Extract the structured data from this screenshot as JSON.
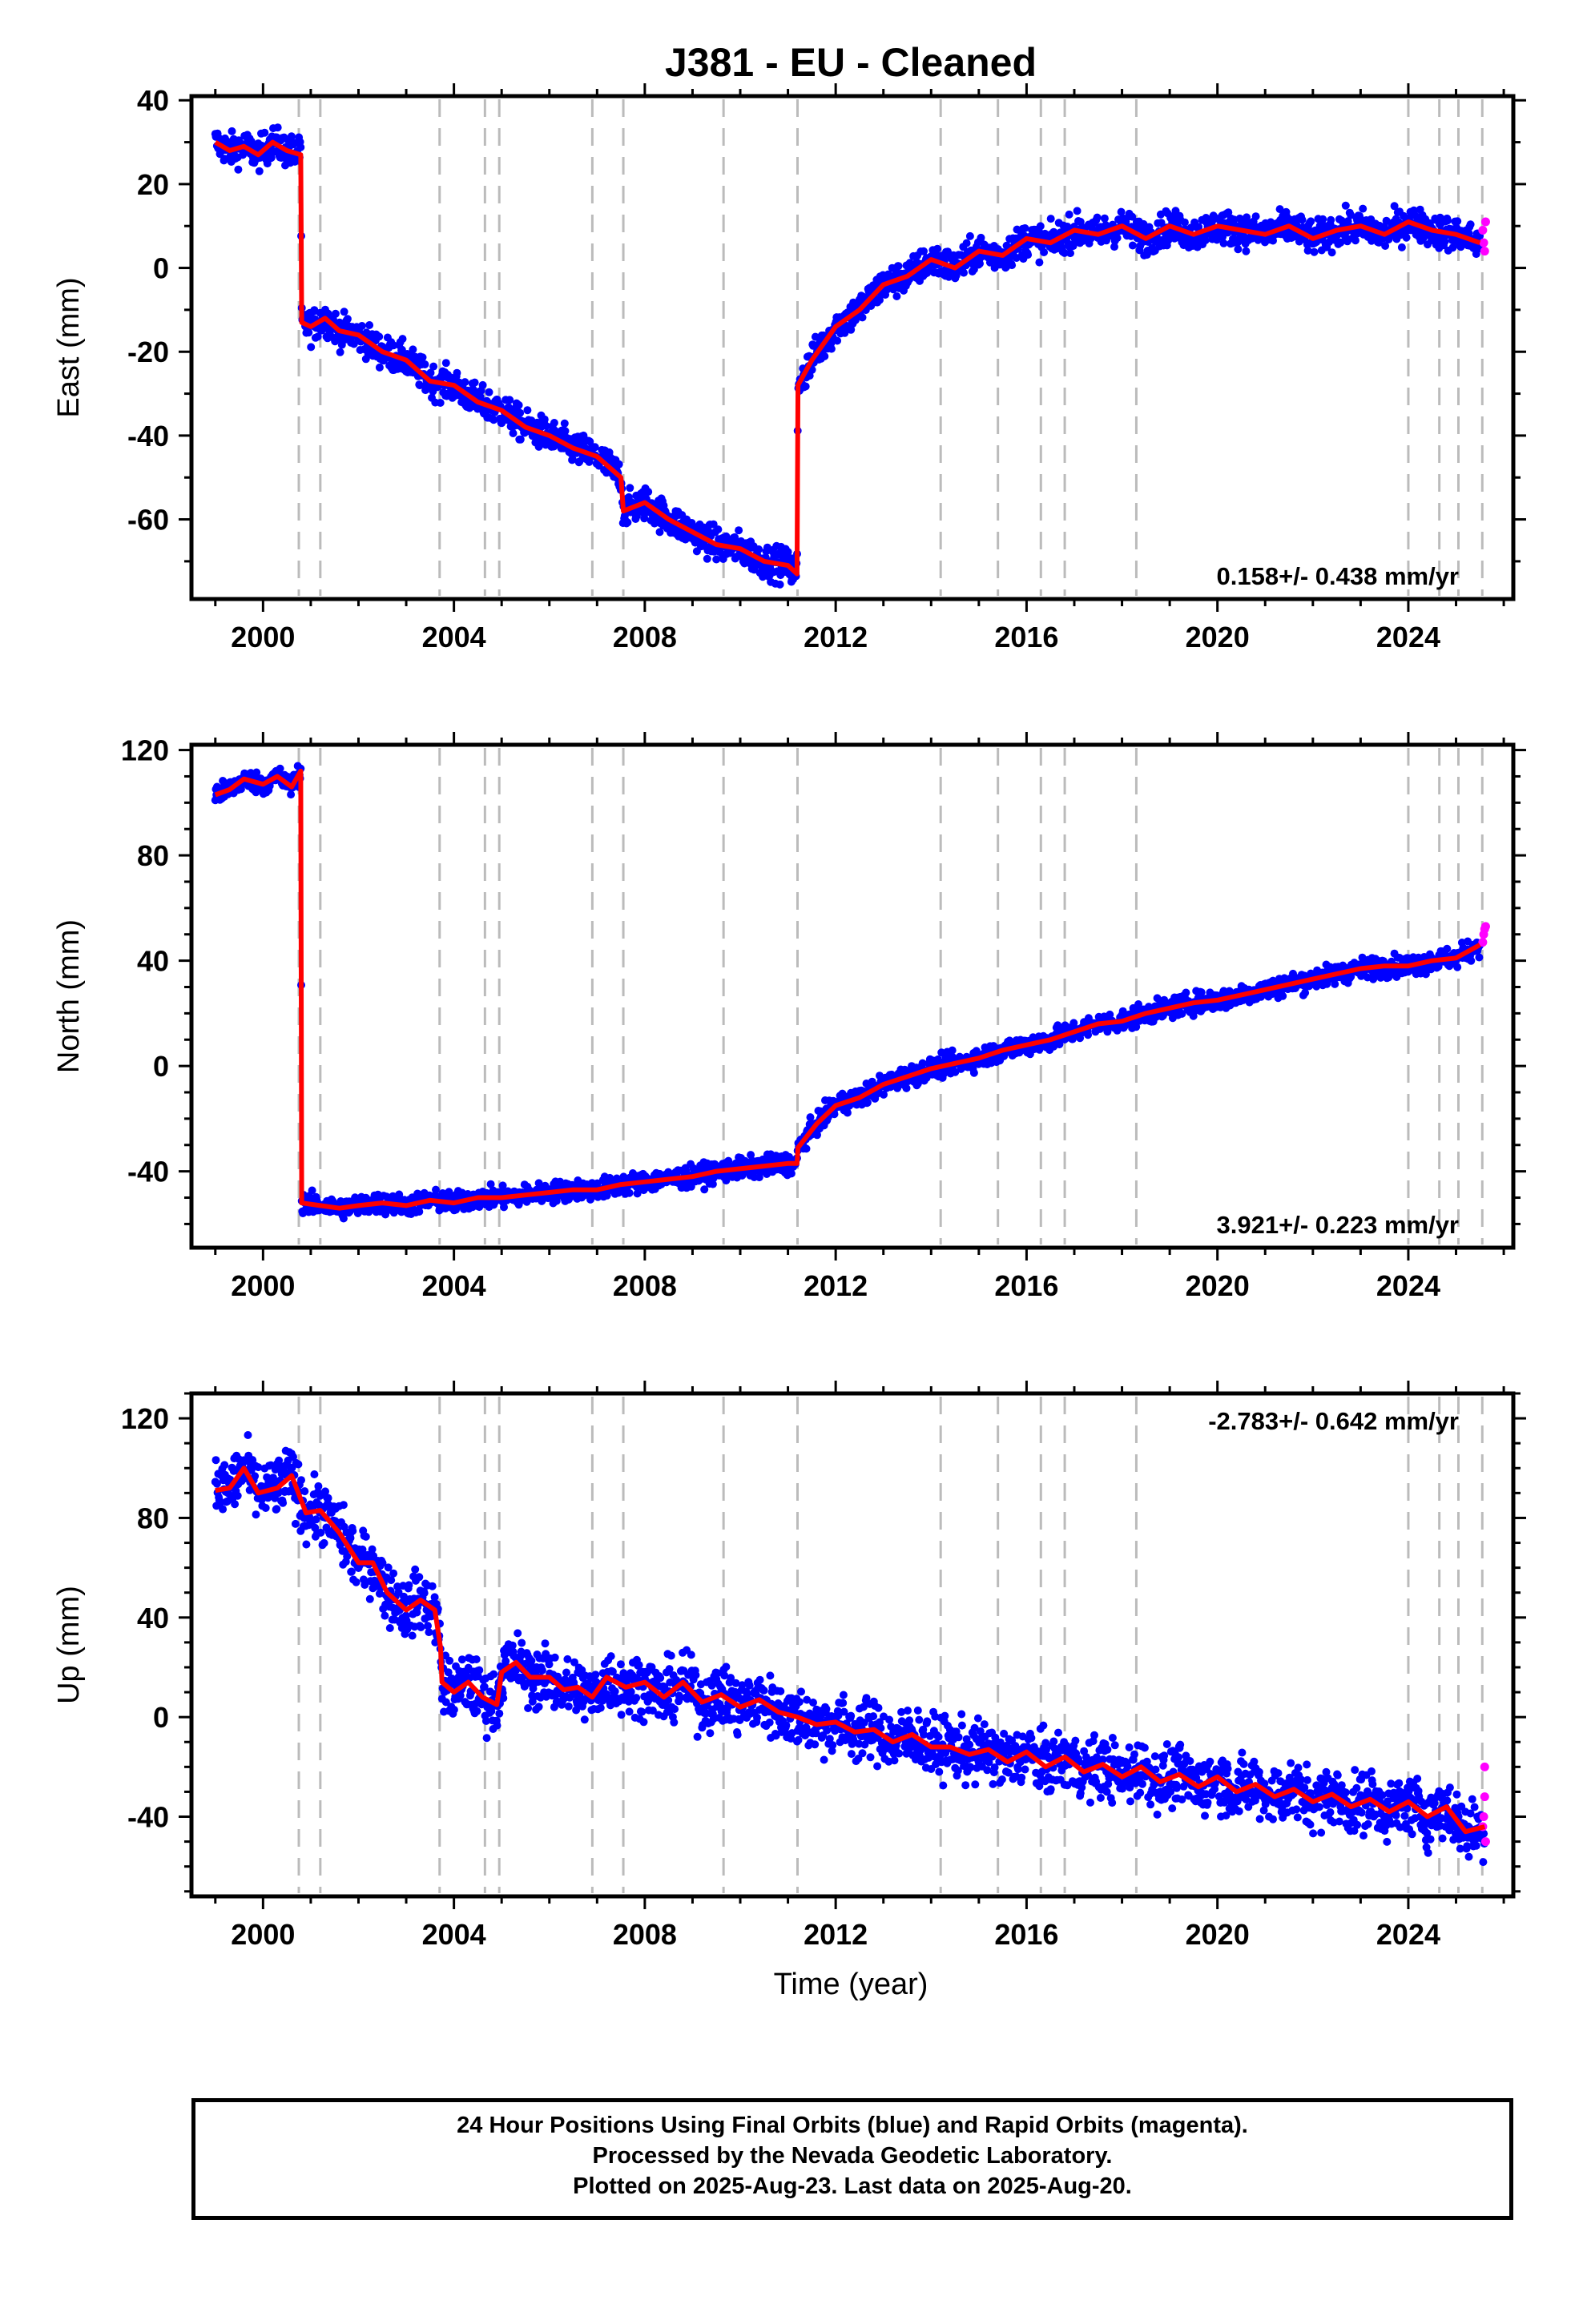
{
  "title": "J381  - EU - Cleaned",
  "xlabel": "Time (year)",
  "x_ticks": [
    "2000",
    "2004",
    "2008",
    "2012",
    "2016",
    "2020",
    "2024"
  ],
  "colors": {
    "final_orbits": "#0000ff",
    "rapid_orbits": "#ff00ff",
    "model": "#ff0000",
    "equipment_lines": "#bbbbbb"
  },
  "caption": {
    "line1": "24 Hour Positions Using Final Orbits (blue) and Rapid Orbits (magenta).",
    "line2": "Processed by the Nevada Geodetic Laboratory.",
    "line3": "Plotted on 2025-Aug-23. Last data on 2025-Aug-20."
  },
  "chart_data": [
    {
      "type": "scatter",
      "ylabel": "East (mm)",
      "rate_label": "0.158+/- 0.438 mm/yr",
      "xlim": [
        1998.5,
        2026.2
      ],
      "ylim": [
        -79,
        41
      ],
      "y_ticks": [
        40,
        20,
        0,
        -20,
        -40,
        -60
      ],
      "grid": false,
      "equipment_changes": [
        2000.75,
        2001.2,
        2003.7,
        2004.65,
        2004.95,
        2006.9,
        2007.55,
        2009.65,
        2011.2,
        2014.2,
        2015.4,
        2016.3,
        2016.8,
        2018.3,
        2024.0,
        2024.65,
        2025.05,
        2025.55
      ],
      "series": [
        {
          "role": "model",
          "x": [
            1999.0,
            1999.3,
            1999.6,
            1999.9,
            2000.2,
            2000.5,
            2000.79,
            2000.81,
            2001.0,
            2001.3,
            2001.6,
            2002.0,
            2002.5,
            2003.0,
            2003.5,
            2004.0,
            2004.5,
            2005.0,
            2005.5,
            2006.0,
            2006.5,
            2007.0,
            2007.5,
            2007.55,
            2008.0,
            2008.5,
            2009.0,
            2009.5,
            2010.0,
            2010.5,
            2011.0,
            2011.19,
            2011.21,
            2011.5,
            2012.0,
            2012.5,
            2013.0,
            2013.5,
            2014.0,
            2014.5,
            2015.0,
            2015.5,
            2016.0,
            2016.5,
            2017.0,
            2017.5,
            2018.0,
            2018.5,
            2019.0,
            2019.5,
            2020.0,
            2020.5,
            2021.0,
            2021.5,
            2022.0,
            2022.5,
            2023.0,
            2023.5,
            2024.0,
            2024.5,
            2025.0,
            2025.5
          ],
          "y": [
            30,
            28,
            29,
            27,
            30,
            28,
            27,
            -13,
            -14,
            -12,
            -15,
            -16,
            -20,
            -22,
            -27,
            -28,
            -32,
            -34,
            -38,
            -40,
            -43,
            -45,
            -50,
            -58,
            -56,
            -60,
            -63,
            -66,
            -67,
            -70,
            -71,
            -73,
            -28,
            -22,
            -14,
            -10,
            -4,
            -2,
            2,
            0,
            4,
            3,
            7,
            6,
            9,
            8,
            10,
            7,
            10,
            8,
            10,
            9,
            8,
            10,
            7,
            9,
            10,
            8,
            11,
            9,
            8,
            6
          ]
        },
        {
          "role": "rapid",
          "x": [
            2025.56,
            2025.58,
            2025.6,
            2025.62
          ],
          "y": [
            9,
            6,
            4,
            11
          ]
        }
      ]
    },
    {
      "type": "scatter",
      "ylabel": "North (mm)",
      "rate_label": "3.921+/- 0.223 mm/yr",
      "xlim": [
        1998.5,
        2026.2
      ],
      "ylim": [
        -69,
        122
      ],
      "y_ticks": [
        120,
        80,
        40,
        0,
        -40
      ],
      "grid": false,
      "equipment_changes": [
        2000.75,
        2001.2,
        2003.7,
        2004.65,
        2004.95,
        2006.9,
        2007.55,
        2009.65,
        2011.2,
        2014.2,
        2015.4,
        2016.3,
        2016.8,
        2018.3,
        2024.0,
        2024.65,
        2025.05,
        2025.55
      ],
      "series": [
        {
          "role": "model",
          "x": [
            1999.0,
            1999.3,
            1999.6,
            2000.0,
            2000.3,
            2000.6,
            2000.79,
            2000.81,
            2001.2,
            2001.6,
            2002.0,
            2002.5,
            2003.0,
            2003.5,
            2004.0,
            2004.5,
            2005.0,
            2005.5,
            2006.0,
            2006.5,
            2007.0,
            2007.5,
            2008.0,
            2008.5,
            2009.0,
            2009.5,
            2010.0,
            2010.5,
            2011.0,
            2011.19,
            2011.21,
            2011.6,
            2012.0,
            2012.5,
            2013.0,
            2013.5,
            2014.0,
            2014.5,
            2015.0,
            2015.5,
            2016.0,
            2016.5,
            2017.0,
            2017.5,
            2018.0,
            2018.5,
            2019.0,
            2019.5,
            2020.0,
            2020.5,
            2021.0,
            2021.5,
            2022.0,
            2022.5,
            2023.0,
            2023.5,
            2024.0,
            2024.5,
            2025.0,
            2025.5
          ],
          "y": [
            103,
            105,
            109,
            107,
            110,
            106,
            112,
            -52,
            -53,
            -54,
            -53,
            -52,
            -53,
            -51,
            -52,
            -50,
            -50,
            -49,
            -48,
            -47,
            -47,
            -45,
            -44,
            -43,
            -42,
            -40,
            -39,
            -38,
            -37,
            -37,
            -31,
            -22,
            -15,
            -12,
            -7,
            -4,
            -1,
            1,
            3,
            6,
            8,
            10,
            13,
            16,
            17,
            20,
            22,
            24,
            25,
            27,
            29,
            31,
            33,
            35,
            37,
            38,
            38,
            40,
            41,
            46
          ]
        },
        {
          "role": "rapid",
          "x": [
            2025.56,
            2025.58,
            2025.6,
            2025.62
          ],
          "y": [
            47,
            50,
            52,
            53
          ]
        }
      ]
    },
    {
      "type": "scatter",
      "ylabel": "Up (mm)",
      "rate_label": "-2.783+/- 0.642 mm/yr",
      "xlim": [
        1998.5,
        2026.2
      ],
      "ylim": [
        -72,
        130
      ],
      "y_ticks": [
        120,
        80,
        40,
        0,
        -40
      ],
      "grid": false,
      "equipment_changes": [
        2000.75,
        2001.2,
        2003.7,
        2004.65,
        2004.95,
        2006.9,
        2007.55,
        2009.65,
        2011.2,
        2014.2,
        2015.4,
        2016.3,
        2016.8,
        2018.3,
        2024.0,
        2024.65,
        2025.05,
        2025.55
      ],
      "series": [
        {
          "role": "model",
          "x": [
            1999.0,
            1999.3,
            1999.6,
            1999.9,
            2000.3,
            2000.6,
            2000.9,
            2001.2,
            2001.6,
            2002.0,
            2002.3,
            2002.6,
            2003.0,
            2003.3,
            2003.6,
            2003.72,
            2003.75,
            2004.0,
            2004.3,
            2004.6,
            2004.9,
            2005.0,
            2005.3,
            2005.6,
            2006.0,
            2006.3,
            2006.6,
            2006.9,
            2007.2,
            2007.6,
            2008.0,
            2008.4,
            2008.8,
            2009.2,
            2009.6,
            2010.0,
            2010.4,
            2010.8,
            2011.2,
            2011.6,
            2012.0,
            2012.4,
            2012.8,
            2013.2,
            2013.6,
            2014.0,
            2014.4,
            2014.8,
            2015.2,
            2015.6,
            2016.0,
            2016.4,
            2016.8,
            2017.2,
            2017.6,
            2018.0,
            2018.4,
            2018.8,
            2019.2,
            2019.6,
            2020.0,
            2020.4,
            2020.8,
            2021.2,
            2021.6,
            2022.0,
            2022.4,
            2022.8,
            2023.2,
            2023.6,
            2024.0,
            2024.4,
            2024.8,
            2025.2,
            2025.6
          ],
          "y": [
            91,
            92,
            100,
            90,
            92,
            97,
            82,
            83,
            74,
            62,
            62,
            50,
            43,
            47,
            43,
            28,
            14,
            10,
            14,
            8,
            5,
            18,
            22,
            16,
            16,
            11,
            12,
            8,
            16,
            12,
            14,
            8,
            14,
            6,
            9,
            4,
            7,
            2,
            0,
            -3,
            -2,
            -6,
            -5,
            -10,
            -7,
            -12,
            -12,
            -15,
            -13,
            -18,
            -14,
            -20,
            -16,
            -22,
            -19,
            -24,
            -20,
            -26,
            -23,
            -28,
            -24,
            -30,
            -27,
            -32,
            -29,
            -34,
            -31,
            -36,
            -33,
            -38,
            -34,
            -40,
            -36,
            -46,
            -44
          ]
        },
        {
          "role": "rapid",
          "x": [
            2025.56,
            2025.58,
            2025.6,
            2025.62,
            2025.6
          ],
          "y": [
            -44,
            -40,
            -32,
            -50,
            -20
          ]
        }
      ]
    }
  ]
}
